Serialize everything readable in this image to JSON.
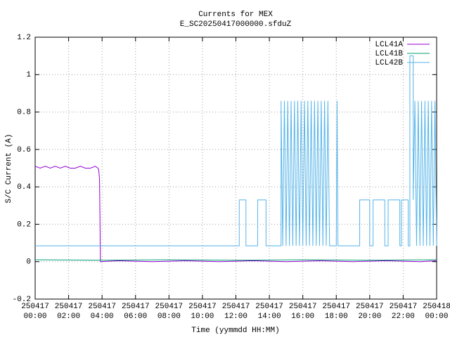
{
  "chart_data": {
    "type": "line",
    "title": "Currents for MEX",
    "subtitle": "E_SC20250417000000.sfduZ",
    "x_label": "Time (yymmdd HH:MM)",
    "y_label": "S/C Current (A)",
    "xlim": [
      0,
      24
    ],
    "ylim": [
      -0.2,
      1.2
    ],
    "yticks": [
      -0.2,
      0,
      0.2,
      0.4,
      0.6,
      0.8,
      1,
      1.2
    ],
    "xticks": [
      {
        "value": 0,
        "label": "250417\n00:00"
      },
      {
        "value": 2,
        "label": "250417\n02:00"
      },
      {
        "value": 4,
        "label": "250417\n04:00"
      },
      {
        "value": 6,
        "label": "250417\n06:00"
      },
      {
        "value": 8,
        "label": "250417\n08:00"
      },
      {
        "value": 10,
        "label": "250417\n10:00"
      },
      {
        "value": 12,
        "label": "250417\n12:00"
      },
      {
        "value": 14,
        "label": "250417\n14:00"
      },
      {
        "value": 16,
        "label": "250417\n16:00"
      },
      {
        "value": 18,
        "label": "250417\n18:00"
      },
      {
        "value": 20,
        "label": "250417\n20:00"
      },
      {
        "value": 22,
        "label": "250417\n22:00"
      },
      {
        "value": 24,
        "label": "250418\n00:00"
      }
    ],
    "grid": true,
    "legend": "top-right",
    "series": [
      {
        "name": "LCL41A",
        "color": "#9400d3",
        "x": [
          0,
          0.3,
          0.6,
          0.9,
          1.2,
          1.5,
          1.8,
          2.1,
          2.4,
          2.7,
          3.0,
          3.3,
          3.6,
          3.75,
          3.8,
          3.85,
          3.9,
          5,
          7,
          9,
          11,
          13,
          15,
          17,
          19,
          21,
          23,
          24
        ],
        "values": [
          0.51,
          0.5,
          0.51,
          0.5,
          0.51,
          0.5,
          0.51,
          0.5,
          0.5,
          0.51,
          0.5,
          0.5,
          0.51,
          0.5,
          0.49,
          0.44,
          0.0,
          0.005,
          0.0,
          0.005,
          0.0,
          0.005,
          0.0,
          0.005,
          0.0,
          0.005,
          0.0,
          0.005
        ]
      },
      {
        "name": "LCL41B",
        "color": "#009e73",
        "x": [
          0,
          4,
          8,
          12,
          16,
          20,
          24
        ],
        "values": [
          0.01,
          0.008,
          0.01,
          0.008,
          0.01,
          0.008,
          0.01
        ]
      },
      {
        "name": "LCL42B",
        "color": "#56b4e9",
        "x": [
          0,
          12.2,
          12.2,
          12.6,
          12.6,
          13.3,
          13.3,
          13.8,
          13.8,
          14.7,
          14.7,
          14.8,
          14.9,
          15.0,
          15.1,
          15.2,
          15.3,
          15.4,
          15.5,
          15.6,
          15.7,
          15.8,
          15.9,
          16.0,
          16.1,
          16.2,
          16.3,
          16.4,
          16.5,
          16.6,
          16.7,
          16.8,
          16.9,
          17.0,
          17.1,
          17.2,
          17.3,
          17.4,
          17.5,
          17.6,
          18.0,
          18.05,
          18.1,
          19.4,
          19.4,
          20.0,
          20.0,
          20.2,
          20.2,
          20.9,
          20.9,
          21.1,
          21.1,
          21.8,
          21.8,
          21.9,
          21.9,
          22.3,
          22.3,
          22.4,
          22.4,
          22.6,
          22.6,
          22.7,
          22.8,
          22.9,
          23.0,
          23.1,
          23.2,
          23.3,
          23.4,
          23.5,
          23.6,
          23.7,
          23.8,
          23.9,
          24.0
        ],
        "values": [
          0.085,
          0.085,
          0.33,
          0.33,
          0.085,
          0.085,
          0.33,
          0.33,
          0.085,
          0.085,
          0.86,
          0.085,
          0.86,
          0.085,
          0.86,
          0.085,
          0.86,
          0.085,
          0.86,
          0.085,
          0.86,
          0.085,
          0.86,
          0.085,
          0.86,
          0.085,
          0.86,
          0.085,
          0.86,
          0.085,
          0.86,
          0.085,
          0.86,
          0.085,
          0.86,
          0.085,
          0.86,
          0.085,
          0.86,
          0.085,
          0.085,
          0.86,
          0.085,
          0.085,
          0.33,
          0.33,
          0.085,
          0.085,
          0.33,
          0.33,
          0.085,
          0.085,
          0.33,
          0.33,
          0.085,
          0.085,
          0.33,
          0.33,
          0.085,
          0.085,
          1.1,
          1.1,
          0.33,
          0.86,
          0.085,
          0.86,
          0.085,
          0.86,
          0.085,
          0.86,
          0.085,
          0.86,
          0.085,
          0.86,
          0.085,
          0.86,
          0.085
        ]
      }
    ]
  }
}
